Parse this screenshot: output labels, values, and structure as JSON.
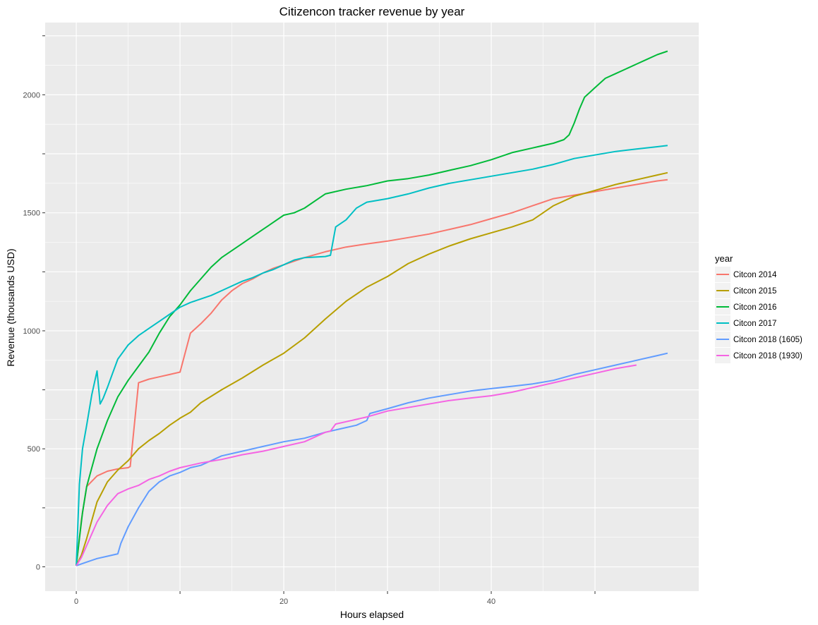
{
  "chart_data": {
    "type": "line",
    "title": "Citizencon tracker revenue by year",
    "xlabel": "Hours elapsed",
    "ylabel": "Revenue (thousands USD)",
    "xlim": [
      -3,
      60
    ],
    "ylim": [
      -103,
      2306
    ],
    "x_ticks": [
      0,
      10,
      20,
      30,
      40,
      50
    ],
    "x_tick_labels": [
      "0",
      "",
      "20",
      "",
      "40",
      ""
    ],
    "y_ticks": [
      0,
      250,
      500,
      750,
      1000,
      1250,
      1500,
      1750,
      2000,
      2250
    ],
    "y_tick_labels": [
      "0",
      "",
      "500",
      "",
      "1000",
      "",
      "1500",
      "",
      "2000",
      ""
    ],
    "grid": true,
    "legend": {
      "title": "year",
      "placement": "right"
    },
    "series": [
      {
        "name": "Citcon 2014",
        "color": "#F8766D",
        "points": [
          [
            0,
            5
          ],
          [
            0.5,
            200
          ],
          [
            1,
            340
          ],
          [
            2,
            385
          ],
          [
            3,
            405
          ],
          [
            4,
            415
          ],
          [
            5,
            420
          ],
          [
            5.2,
            425
          ],
          [
            6,
            780
          ],
          [
            7,
            795
          ],
          [
            8,
            805
          ],
          [
            9,
            815
          ],
          [
            10,
            825
          ],
          [
            11,
            990
          ],
          [
            12,
            1030
          ],
          [
            13,
            1075
          ],
          [
            14,
            1130
          ],
          [
            15,
            1170
          ],
          [
            16,
            1200
          ],
          [
            17,
            1220
          ],
          [
            18,
            1245
          ],
          [
            19,
            1265
          ],
          [
            20,
            1280
          ],
          [
            22,
            1310
          ],
          [
            24,
            1335
          ],
          [
            26,
            1355
          ],
          [
            28,
            1368
          ],
          [
            30,
            1380
          ],
          [
            32,
            1395
          ],
          [
            34,
            1410
          ],
          [
            36,
            1430
          ],
          [
            38,
            1450
          ],
          [
            40,
            1475
          ],
          [
            42,
            1500
          ],
          [
            44,
            1530
          ],
          [
            46,
            1560
          ],
          [
            48,
            1575
          ],
          [
            50,
            1590
          ],
          [
            52,
            1605
          ],
          [
            54,
            1620
          ],
          [
            56,
            1635
          ],
          [
            57,
            1640
          ]
        ]
      },
      {
        "name": "Citcon 2015",
        "color": "#B79F00",
        "points": [
          [
            0,
            5
          ],
          [
            0.5,
            50
          ],
          [
            1,
            120
          ],
          [
            2,
            275
          ],
          [
            3,
            360
          ],
          [
            4,
            410
          ],
          [
            5,
            450
          ],
          [
            6,
            500
          ],
          [
            7,
            535
          ],
          [
            8,
            565
          ],
          [
            9,
            600
          ],
          [
            10,
            630
          ],
          [
            11,
            655
          ],
          [
            12,
            695
          ],
          [
            14,
            750
          ],
          [
            16,
            800
          ],
          [
            18,
            855
          ],
          [
            20,
            905
          ],
          [
            22,
            970
          ],
          [
            24,
            1050
          ],
          [
            26,
            1125
          ],
          [
            28,
            1185
          ],
          [
            30,
            1230
          ],
          [
            32,
            1285
          ],
          [
            34,
            1325
          ],
          [
            36,
            1360
          ],
          [
            38,
            1390
          ],
          [
            40,
            1415
          ],
          [
            42,
            1440
          ],
          [
            44,
            1470
          ],
          [
            46,
            1530
          ],
          [
            48,
            1570
          ],
          [
            50,
            1595
          ],
          [
            52,
            1620
          ],
          [
            54,
            1640
          ],
          [
            56,
            1660
          ],
          [
            57,
            1670
          ]
        ]
      },
      {
        "name": "Citcon 2016",
        "color": "#00BA38",
        "points": [
          [
            0,
            5
          ],
          [
            0.3,
            120
          ],
          [
            0.6,
            230
          ],
          [
            1,
            340
          ],
          [
            1.5,
            420
          ],
          [
            2,
            500
          ],
          [
            3,
            620
          ],
          [
            4,
            720
          ],
          [
            5,
            790
          ],
          [
            6,
            850
          ],
          [
            7,
            910
          ],
          [
            8,
            990
          ],
          [
            9,
            1060
          ],
          [
            10,
            1110
          ],
          [
            11,
            1170
          ],
          [
            12,
            1220
          ],
          [
            13,
            1270
          ],
          [
            14,
            1310
          ],
          [
            15,
            1340
          ],
          [
            16,
            1370
          ],
          [
            17,
            1400
          ],
          [
            18,
            1430
          ],
          [
            19,
            1460
          ],
          [
            20,
            1490
          ],
          [
            21,
            1500
          ],
          [
            22,
            1520
          ],
          [
            23,
            1550
          ],
          [
            24,
            1580
          ],
          [
            26,
            1600
          ],
          [
            28,
            1615
          ],
          [
            30,
            1635
          ],
          [
            32,
            1645
          ],
          [
            34,
            1660
          ],
          [
            36,
            1680
          ],
          [
            38,
            1700
          ],
          [
            40,
            1725
          ],
          [
            42,
            1755
          ],
          [
            44,
            1775
          ],
          [
            46,
            1795
          ],
          [
            47,
            1810
          ],
          [
            47.5,
            1830
          ],
          [
            48,
            1880
          ],
          [
            48.5,
            1940
          ],
          [
            49,
            1990
          ],
          [
            50,
            2030
          ],
          [
            51,
            2070
          ],
          [
            52,
            2090
          ],
          [
            53,
            2110
          ],
          [
            54,
            2130
          ],
          [
            55,
            2150
          ],
          [
            56,
            2170
          ],
          [
            57,
            2185
          ]
        ]
      },
      {
        "name": "Citcon 2017",
        "color": "#00BFC4",
        "points": [
          [
            0,
            5
          ],
          [
            0.3,
            350
          ],
          [
            0.6,
            500
          ],
          [
            1,
            600
          ],
          [
            1.5,
            730
          ],
          [
            2,
            830
          ],
          [
            2.3,
            690
          ],
          [
            2.6,
            715
          ],
          [
            3,
            760
          ],
          [
            3.5,
            820
          ],
          [
            4,
            880
          ],
          [
            5,
            940
          ],
          [
            6,
            980
          ],
          [
            7,
            1010
          ],
          [
            8,
            1040
          ],
          [
            9,
            1070
          ],
          [
            10,
            1100
          ],
          [
            11,
            1120
          ],
          [
            12,
            1135
          ],
          [
            13,
            1150
          ],
          [
            14,
            1170
          ],
          [
            15,
            1190
          ],
          [
            16,
            1210
          ],
          [
            17,
            1225
          ],
          [
            18,
            1245
          ],
          [
            19,
            1260
          ],
          [
            20,
            1280
          ],
          [
            21,
            1300
          ],
          [
            22,
            1310
          ],
          [
            24,
            1315
          ],
          [
            24.5,
            1320
          ],
          [
            25,
            1440
          ],
          [
            26,
            1470
          ],
          [
            27,
            1520
          ],
          [
            28,
            1545
          ],
          [
            30,
            1560
          ],
          [
            32,
            1580
          ],
          [
            34,
            1605
          ],
          [
            36,
            1625
          ],
          [
            38,
            1640
          ],
          [
            40,
            1655
          ],
          [
            42,
            1670
          ],
          [
            44,
            1685
          ],
          [
            46,
            1705
          ],
          [
            48,
            1730
          ],
          [
            50,
            1745
          ],
          [
            52,
            1760
          ],
          [
            54,
            1770
          ],
          [
            56,
            1780
          ],
          [
            57,
            1785
          ]
        ]
      },
      {
        "name": "Citcon 2018 (1605)",
        "color": "#619CFF",
        "points": [
          [
            0,
            5
          ],
          [
            1,
            20
          ],
          [
            2,
            35
          ],
          [
            3,
            45
          ],
          [
            4,
            55
          ],
          [
            4.3,
            100
          ],
          [
            5,
            170
          ],
          [
            6,
            250
          ],
          [
            7,
            320
          ],
          [
            8,
            360
          ],
          [
            9,
            385
          ],
          [
            10,
            400
          ],
          [
            11,
            420
          ],
          [
            12,
            430
          ],
          [
            13,
            450
          ],
          [
            14,
            470
          ],
          [
            16,
            490
          ],
          [
            18,
            510
          ],
          [
            20,
            530
          ],
          [
            22,
            545
          ],
          [
            24,
            570
          ],
          [
            26,
            590
          ],
          [
            27,
            600
          ],
          [
            28,
            620
          ],
          [
            28.3,
            650
          ],
          [
            30,
            670
          ],
          [
            32,
            695
          ],
          [
            34,
            715
          ],
          [
            36,
            730
          ],
          [
            38,
            745
          ],
          [
            40,
            755
          ],
          [
            42,
            765
          ],
          [
            44,
            775
          ],
          [
            46,
            790
          ],
          [
            48,
            815
          ],
          [
            50,
            835
          ],
          [
            52,
            855
          ],
          [
            54,
            875
          ],
          [
            56,
            895
          ],
          [
            57,
            905
          ]
        ]
      },
      {
        "name": "Citcon 2018 (1930)",
        "color": "#F564E3",
        "points": [
          [
            0,
            5
          ],
          [
            0.5,
            40
          ],
          [
            1,
            90
          ],
          [
            2,
            190
          ],
          [
            3,
            260
          ],
          [
            4,
            310
          ],
          [
            5,
            330
          ],
          [
            6,
            345
          ],
          [
            7,
            370
          ],
          [
            8,
            385
          ],
          [
            9,
            405
          ],
          [
            10,
            420
          ],
          [
            11,
            430
          ],
          [
            12,
            440
          ],
          [
            14,
            455
          ],
          [
            16,
            475
          ],
          [
            18,
            490
          ],
          [
            20,
            510
          ],
          [
            22,
            530
          ],
          [
            24,
            570
          ],
          [
            24.5,
            575
          ],
          [
            25,
            605
          ],
          [
            26,
            615
          ],
          [
            28,
            635
          ],
          [
            30,
            660
          ],
          [
            32,
            675
          ],
          [
            34,
            690
          ],
          [
            36,
            705
          ],
          [
            38,
            715
          ],
          [
            40,
            725
          ],
          [
            42,
            740
          ],
          [
            44,
            760
          ],
          [
            46,
            780
          ],
          [
            48,
            800
          ],
          [
            50,
            820
          ],
          [
            52,
            840
          ],
          [
            54,
            855
          ]
        ]
      }
    ]
  }
}
